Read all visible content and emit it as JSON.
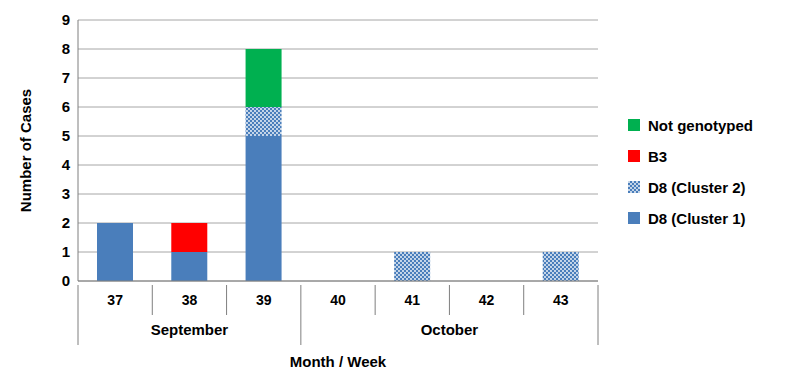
{
  "chart_data": {
    "type": "bar",
    "stacked": true,
    "grid": true,
    "legend": "right",
    "x_label": "Month / Week",
    "y_label": "Number of Cases",
    "categories": [
      "37",
      "38",
      "39",
      "40",
      "41",
      "42",
      "43"
    ],
    "x_groups": [
      {
        "label": "September",
        "categories": [
          "37",
          "38",
          "39"
        ]
      },
      {
        "label": "October",
        "categories": [
          "40",
          "41",
          "42",
          "43"
        ]
      }
    ],
    "series": [
      {
        "name": "D8 (Cluster 1)",
        "color": "#4a7ebb",
        "values": [
          2,
          1,
          5,
          0,
          0,
          0,
          0
        ]
      },
      {
        "name": "D8 (Cluster 2)",
        "color": "#4a7ebb",
        "values": [
          0,
          0,
          1,
          0,
          1,
          0,
          1
        ]
      },
      {
        "name": "B3",
        "color": "#ff0000",
        "values": [
          0,
          1,
          0,
          0,
          0,
          0,
          0
        ]
      },
      {
        "name": "Not genotyped",
        "color": "#00b050",
        "values": [
          0,
          0,
          2,
          0,
          0,
          0,
          0
        ]
      }
    ],
    "ylim": [
      0,
      9
    ],
    "yticks": [
      0,
      1,
      2,
      3,
      4,
      5,
      6,
      7,
      8,
      9
    ]
  }
}
